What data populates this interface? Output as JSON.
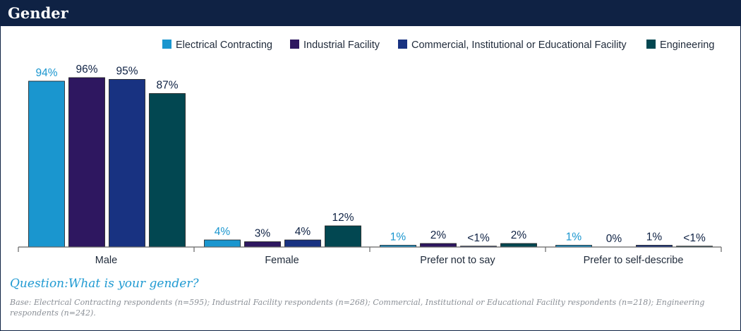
{
  "header": {
    "title": "Gender"
  },
  "question": "Question:What is your gender?",
  "base_note": "Base: Electrical Contracting respondents (n=595); Industrial Facility respondents (n=268); Commercial, Institutional or Educational Facility respondents (n=218); Engineering respondents (n=242).",
  "colors": {
    "electrical": "#1a96cf",
    "industrial": "#2e1760",
    "commercial": "#183281",
    "engineering": "#024751",
    "header": "#0f2244",
    "axis": "#666666",
    "label_text": "#0f2244"
  },
  "chart_data": {
    "type": "bar",
    "title": "Gender",
    "xlabel": "",
    "ylabel": "",
    "ylim": [
      0,
      100
    ],
    "grid": false,
    "legend_position": "top-right",
    "categories": [
      "Male",
      "Female",
      "Prefer not to say",
      "Prefer to self-describe"
    ],
    "series": [
      {
        "name": "Electrical Contracting",
        "color": "#1a96cf",
        "values": [
          94,
          4,
          1,
          1
        ],
        "labels": [
          "94%",
          "4%",
          "1%",
          "1%"
        ]
      },
      {
        "name": "Industrial Facility",
        "color": "#2e1760",
        "values": [
          96,
          3,
          2,
          0
        ],
        "labels": [
          "96%",
          "3%",
          "2%",
          "0%"
        ]
      },
      {
        "name": "Commercial, Institutional or Educational Facility",
        "color": "#183281",
        "values": [
          95,
          4,
          0.5,
          1
        ],
        "labels": [
          "95%",
          "4%",
          "<1%",
          "1%"
        ]
      },
      {
        "name": "Engineering",
        "color": "#024751",
        "values": [
          87,
          12,
          2,
          0.5
        ],
        "labels": [
          "87%",
          "12%",
          "2%",
          "<1%"
        ]
      }
    ]
  }
}
